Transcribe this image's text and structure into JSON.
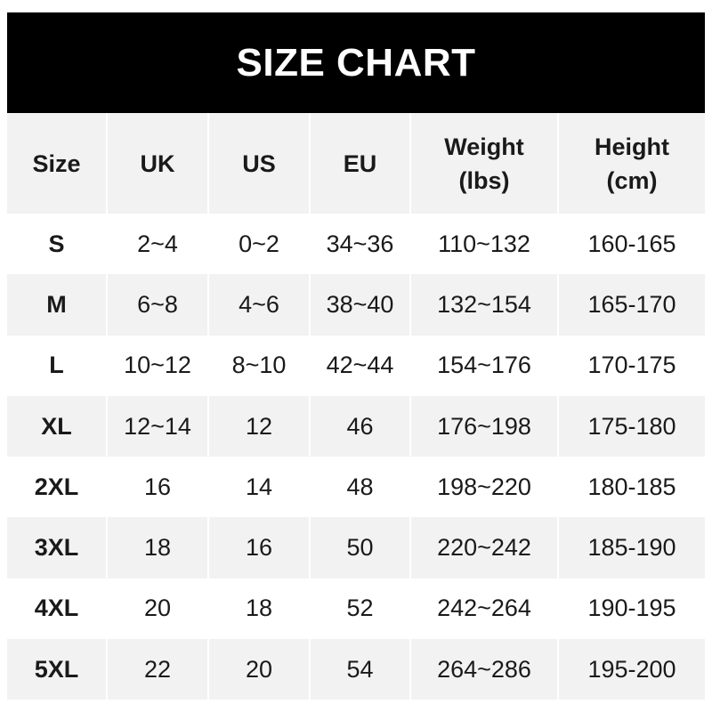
{
  "title": "SIZE CHART",
  "colors": {
    "title_bg": "#000000",
    "title_text": "#ffffff",
    "stripe": "#f2f2f2"
  },
  "headers": [
    "Size",
    "UK",
    "US",
    "EU",
    "Weight\n(lbs)",
    "Height\n(cm)"
  ],
  "header_lines": [
    [
      "Size"
    ],
    [
      "UK"
    ],
    [
      "US"
    ],
    [
      "EU"
    ],
    [
      "Weight",
      "(lbs)"
    ],
    [
      "Height",
      "(cm)"
    ]
  ],
  "rows": [
    [
      "S",
      "2~4",
      "0~2",
      "34~36",
      "110~132",
      "160-165"
    ],
    [
      "M",
      "6~8",
      "4~6",
      "38~40",
      "132~154",
      "165-170"
    ],
    [
      "L",
      "10~12",
      "8~10",
      "42~44",
      "154~176",
      "170-175"
    ],
    [
      "XL",
      "12~14",
      "12",
      "46",
      "176~198",
      "175-180"
    ],
    [
      "2XL",
      "16",
      "14",
      "48",
      "198~220",
      "180-185"
    ],
    [
      "3XL",
      "18",
      "16",
      "50",
      "220~242",
      "185-190"
    ],
    [
      "4XL",
      "20",
      "18",
      "52",
      "242~264",
      "190-195"
    ],
    [
      "5XL",
      "22",
      "20",
      "54",
      "264~286",
      "195-200"
    ]
  ]
}
